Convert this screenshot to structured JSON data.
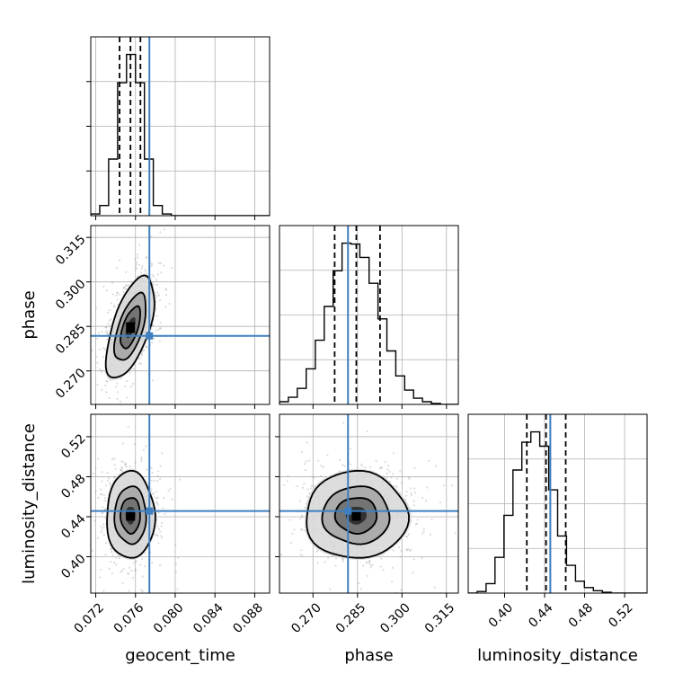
{
  "chart_data": {
    "type": "corner",
    "grid": true,
    "colors": {
      "truth": "#3f7fbf",
      "hist": "#000000",
      "quantile": "#000000",
      "samples": "#9a9a9a"
    },
    "parameters": [
      {
        "name": "geocent_time",
        "xlabel": "geocent_time",
        "range": [
          0.0715,
          0.0895
        ],
        "ticks": [
          0.072,
          0.076,
          0.08,
          0.084,
          0.088
        ],
        "tick_labels": [
          "0.072",
          "0.076",
          "0.080",
          "0.084",
          "0.088"
        ],
        "truth": 0.0774,
        "median": 0.0755,
        "q16": 0.0744,
        "q84": 0.0765
      },
      {
        "name": "phase",
        "xlabel": "phase",
        "ylabel": "phase",
        "range": [
          0.2587,
          0.319
        ],
        "ticks": [
          0.27,
          0.285,
          0.3,
          0.315
        ],
        "tick_labels": [
          "0.270",
          "0.285",
          "0.300",
          "0.315"
        ],
        "truth": 0.2818,
        "median": 0.2846,
        "q16": 0.2773,
        "q84": 0.2926
      },
      {
        "name": "luminosity_distance",
        "xlabel": "luminosity_distance",
        "ylabel": "luminosity_distance",
        "range": [
          0.3636,
          0.5424
        ],
        "ticks": [
          0.4,
          0.44,
          0.48,
          0.52
        ],
        "tick_labels": [
          "0.40",
          "0.44",
          "0.48",
          "0.52"
        ],
        "truth": 0.4457,
        "median": 0.4414,
        "q16": 0.4222,
        "q84": 0.4611
      }
    ],
    "histograms": [
      {
        "param": "geocent_time",
        "edges": [
          0.0715,
          0.0724,
          0.0733,
          0.0742,
          0.0751,
          0.076,
          0.0769,
          0.0778,
          0.0787,
          0.0796,
          0.0805,
          0.0814,
          0.0823,
          0.0832,
          0.0841,
          0.085,
          0.0859,
          0.0868,
          0.0877,
          0.0886,
          0.0895
        ],
        "counts": [
          3,
          18,
          100,
          235,
          285,
          235,
          100,
          18,
          3,
          0,
          0,
          0,
          0,
          0,
          0,
          0,
          0,
          0,
          0,
          0
        ]
      },
      {
        "param": "phase",
        "edges": [
          0.2587,
          0.2617,
          0.2647,
          0.2677,
          0.2708,
          0.2738,
          0.2768,
          0.2798,
          0.2828,
          0.2858,
          0.2889,
          0.2919,
          0.2949,
          0.2979,
          0.3009,
          0.3039,
          0.3069,
          0.3099,
          0.313,
          0.316,
          0.319
        ],
        "counts": [
          3,
          8,
          18,
          40,
          72,
          110,
          150,
          181,
          180,
          165,
          136,
          96,
          60,
          32,
          16,
          7,
          3,
          1,
          0,
          0
        ]
      },
      {
        "param": "luminosity_distance",
        "edges": [
          0.3636,
          0.3725,
          0.3815,
          0.3904,
          0.3994,
          0.4083,
          0.4172,
          0.4262,
          0.4351,
          0.4441,
          0.453,
          0.4619,
          0.4709,
          0.4798,
          0.4888,
          0.4977,
          0.5066,
          0.5156,
          0.5245,
          0.5335,
          0.5424
        ],
        "counts": [
          0,
          2,
          12,
          45,
          98,
          155,
          190,
          203,
          185,
          130,
          72,
          35,
          15,
          7,
          3,
          1,
          0,
          0,
          0,
          0
        ]
      }
    ],
    "joint": [
      {
        "x": "geocent_time",
        "y": "phase",
        "mean": [
          0.0755,
          0.2846
        ],
        "sd": [
          0.0011,
          0.0078
        ],
        "corr": 0.6
      },
      {
        "x": "geocent_time",
        "y": "luminosity_distance",
        "mean": [
          0.0755,
          0.4414
        ],
        "sd": [
          0.0011,
          0.0198
        ],
        "corr": 0.0
      },
      {
        "x": "phase",
        "y": "luminosity_distance",
        "mean": [
          0.2846,
          0.4414
        ],
        "sd": [
          0.0078,
          0.0198
        ],
        "corr": 0.0
      }
    ],
    "contour_levels": [
      0.39,
      0.86,
      1.0
    ]
  }
}
